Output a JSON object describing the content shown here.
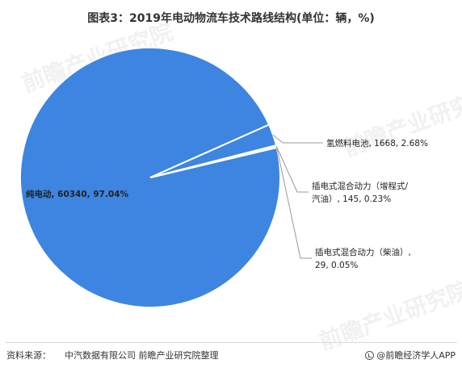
{
  "title": "图表3：2019年电动物流车技术路线结构(单位：辆，%)",
  "chart_data": {
    "type": "pie",
    "slices": [
      {
        "name": "纯电动",
        "value": 60340,
        "percent": "97.04%",
        "color": "#3d85e0"
      },
      {
        "name": "氢燃料电池",
        "value": 1668,
        "percent": "2.68%",
        "color": "#3d85e0"
      },
      {
        "name": "插电式混合动力（增程式/汽油）",
        "value": 145,
        "percent": "0.23%",
        "color": "#3d85e0"
      },
      {
        "name": "插电式混合动力（柴油）",
        "value": 29,
        "percent": "0.05%",
        "color": "#3d85e0"
      }
    ],
    "labels": [
      {
        "lines": [
          "纯电动, 60340, 97.04%"
        ]
      },
      {
        "lines": [
          "氢燃料电池, 1668, 2.68%"
        ]
      },
      {
        "lines": [
          "插电式混合动力（增程式/",
          "汽油）, 145, 0.23%"
        ]
      },
      {
        "lines": [
          "插电式混合动力（柴油）,",
          "29, 0.05%"
        ]
      }
    ]
  },
  "footer": {
    "source_label": "资料来源：",
    "source_text": "中汽数据有限公司 前瞻产业研究院整理",
    "brand": "@前瞻经济学人APP"
  },
  "watermark_text": "前瞻产业研究院",
  "colors": {
    "slice": "#3d85e0",
    "leader": "#999999",
    "label_text": "#222222"
  }
}
